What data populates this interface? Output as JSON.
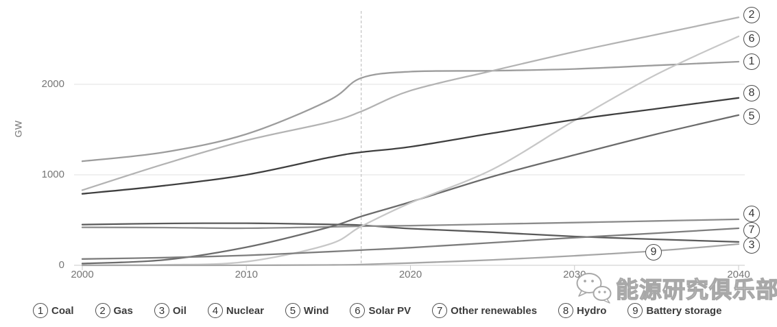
{
  "watermark": {
    "text": "能源研究俱乐部",
    "icon": "wechat-icon"
  },
  "chart_data": {
    "type": "line",
    "title": "",
    "xlabel": "",
    "ylabel": "GW",
    "x": [
      2000,
      2005,
      2010,
      2015,
      2017,
      2020,
      2025,
      2030,
      2035,
      2040
    ],
    "x_ticks": [
      "2000",
      "2010",
      "2020",
      "2030",
      "2040"
    ],
    "y_ticks": [
      "0",
      "1000",
      "2000"
    ],
    "xlim": [
      2000,
      2040
    ],
    "ylim": [
      0,
      2800
    ],
    "grid": "horizontal-light",
    "legend_position": "bottom",
    "divider_year": 2017,
    "series": [
      {
        "num": "1",
        "name": "Coal",
        "color": "#9c9c9c",
        "label_x": 1096,
        "label_y": 90,
        "values": [
          1150,
          1250,
          1450,
          1820,
          2070,
          2140,
          2150,
          2170,
          2210,
          2250
        ]
      },
      {
        "num": "2",
        "name": "Gas",
        "color": "#b3b3b3",
        "label_x": 1096,
        "label_y": 22,
        "values": [
          830,
          1120,
          1380,
          1580,
          1700,
          1930,
          2150,
          2360,
          2550,
          2740
        ]
      },
      {
        "num": "3",
        "name": "Oil",
        "color": "#595959",
        "label_x": 1096,
        "label_y": 358,
        "values": [
          450,
          462,
          465,
          452,
          443,
          405,
          365,
          318,
          287,
          258
        ]
      },
      {
        "num": "4",
        "name": "Nuclear",
        "color": "#8b8b8b",
        "label_x": 1096,
        "label_y": 312,
        "values": [
          420,
          417,
          410,
          424,
          432,
          438,
          455,
          472,
          490,
          508
        ]
      },
      {
        "num": "5",
        "name": "Wind",
        "color": "#6b6b6b",
        "label_x": 1096,
        "label_y": 170,
        "values": [
          20,
          60,
          200,
          420,
          540,
          700,
          980,
          1220,
          1450,
          1660
        ]
      },
      {
        "num": "6",
        "name": "Solar PV",
        "color": "#c7c7c7",
        "label_x": 1096,
        "label_y": 57,
        "values": [
          2,
          5,
          40,
          230,
          430,
          690,
          1060,
          1600,
          2110,
          2530
        ]
      },
      {
        "num": "7",
        "name": "Other renewables",
        "color": "#7d7d7d",
        "label_x": 1096,
        "label_y": 336,
        "values": [
          70,
          85,
          110,
          150,
          168,
          195,
          250,
          305,
          355,
          409
        ]
      },
      {
        "num": "8",
        "name": "Hydro",
        "color": "#3f3f3f",
        "label_x": 1096,
        "label_y": 136,
        "values": [
          790,
          880,
          1000,
          1190,
          1250,
          1310,
          1460,
          1610,
          1730,
          1850
        ]
      },
      {
        "num": "9",
        "name": "Battery storage",
        "color": "#a6a6a6",
        "label_x": 953,
        "label_y": 368,
        "values": [
          0,
          0,
          1,
          4,
          8,
          25,
          60,
          105,
          160,
          235
        ]
      }
    ]
  },
  "legend": {
    "items": [
      {
        "num": "1",
        "label": "Coal"
      },
      {
        "num": "2",
        "label": "Gas"
      },
      {
        "num": "3",
        "label": "Oil"
      },
      {
        "num": "4",
        "label": "Nuclear"
      },
      {
        "num": "5",
        "label": "Wind"
      },
      {
        "num": "6",
        "label": "Solar PV"
      },
      {
        "num": "7",
        "label": "Other renewables"
      },
      {
        "num": "8",
        "label": "Hydro"
      },
      {
        "num": "9",
        "label": "Battery storage"
      }
    ]
  }
}
